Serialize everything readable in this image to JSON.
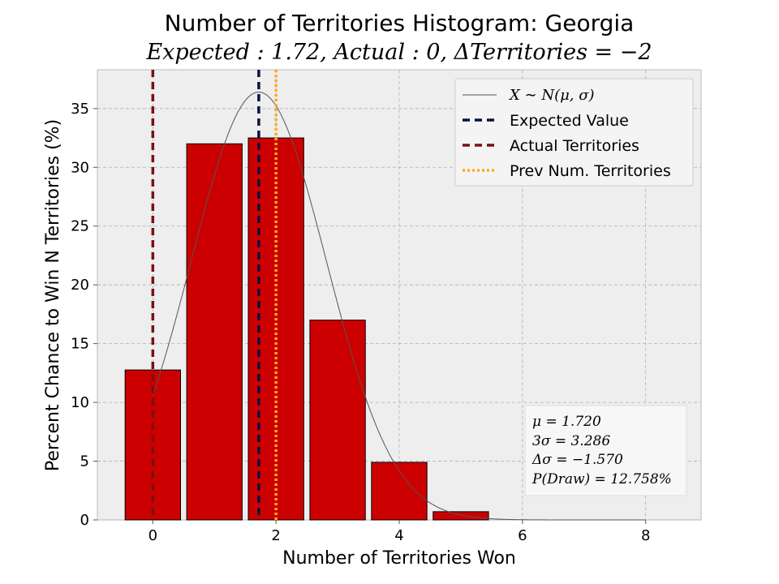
{
  "chart_data": {
    "type": "bar",
    "title": "Number of Territories Histogram: Georgia",
    "subtitle": "Expected : 1.72, Actual : 0, ΔTerritories = −2",
    "xlabel": "Number of Territories Won",
    "ylabel": "Percent Chance to Win N Territories (%)",
    "xlim": [
      -0.9,
      8.9
    ],
    "ylim": [
      0,
      38.3
    ],
    "xticks": [
      0,
      2,
      4,
      6,
      8
    ],
    "yticks": [
      0,
      5,
      10,
      15,
      20,
      25,
      30,
      35
    ],
    "grid": true,
    "bar_color": "#cc0000",
    "bar_edge_color": "#000000",
    "bars": [
      {
        "x": 0,
        "value": 12.758
      },
      {
        "x": 1,
        "value": 32.0
      },
      {
        "x": 2,
        "value": 32.5
      },
      {
        "x": 3,
        "value": 17.0
      },
      {
        "x": 4,
        "value": 4.9
      },
      {
        "x": 5,
        "value": 0.7
      }
    ],
    "normal_curve": {
      "mu": 1.72,
      "sigma": 1.0953,
      "peak_percent": 36.4,
      "color": "#555555"
    },
    "reference_lines": [
      {
        "name": "Expected Value",
        "x": 1.72,
        "color": "#0a1240",
        "style": "dashed"
      },
      {
        "name": "Actual Territories",
        "x": 0,
        "color": "#7a1010",
        "style": "dashed"
      },
      {
        "name": "Prev Num. Territories",
        "x": 2,
        "color": "#ffaa22",
        "style": "dotted"
      }
    ],
    "legend": {
      "placement": "top-right",
      "entries": [
        {
          "label": "X ∼ N(μ, σ)",
          "kind": "curve",
          "color": "#555555"
        },
        {
          "label": "Expected Value",
          "kind": "dashed",
          "color": "#0a1240"
        },
        {
          "label": "Actual Territories",
          "kind": "dashed",
          "color": "#7a1010"
        },
        {
          "label": "Prev Num. Territories",
          "kind": "dotted",
          "color": "#ffaa22"
        }
      ]
    },
    "stats_box": {
      "placement": "bottom-right",
      "lines": [
        "μ = 1.720",
        "3σ = 3.286",
        "Δσ = −1.570",
        "P(Draw) = 12.758%"
      ]
    }
  }
}
